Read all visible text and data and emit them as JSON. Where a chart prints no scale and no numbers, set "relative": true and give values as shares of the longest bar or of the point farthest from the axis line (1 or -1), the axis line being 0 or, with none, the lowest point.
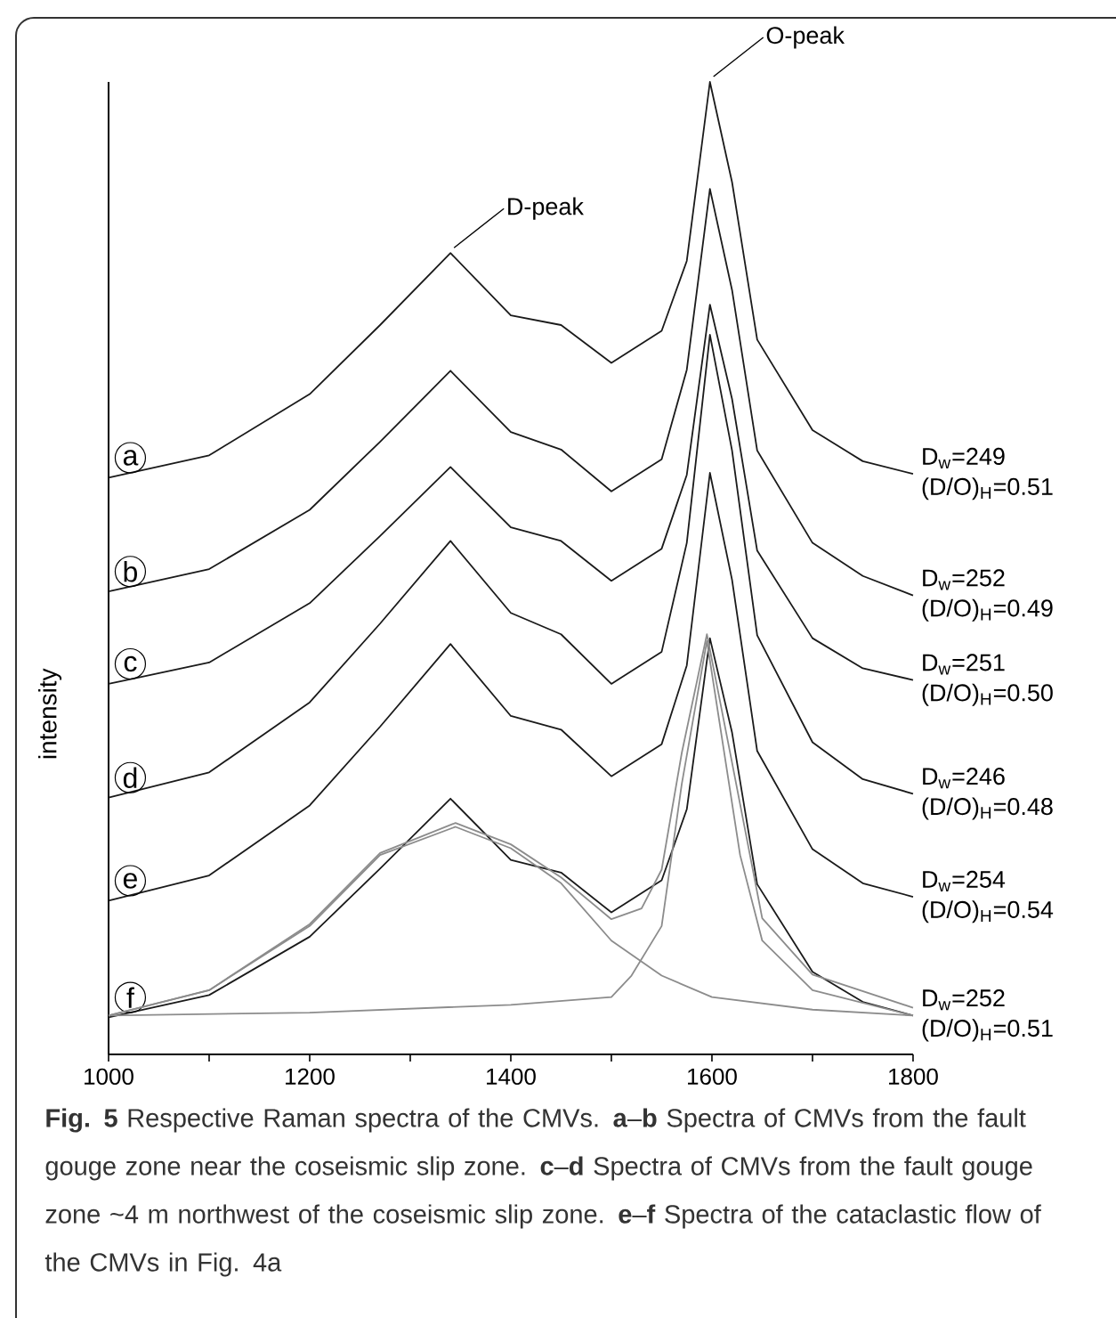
{
  "chart_data": {
    "type": "line",
    "relative": true,
    "ylabel": "intensity",
    "x": [
      1000,
      1100,
      1200,
      1270,
      1340,
      1400,
      1450,
      1500,
      1550,
      1575,
      1598,
      1620,
      1645,
      1700,
      1750,
      1800
    ],
    "xlim": [
      1000,
      1800
    ],
    "xticks": [
      1000,
      {
        "value": 1100,
        "label": null
      },
      1200,
      {
        "value": 1300,
        "label": null
      },
      1400,
      {
        "value": 1500,
        "label": null
      },
      1600,
      {
        "value": 1700,
        "label": null
      },
      1800
    ],
    "series": [
      {
        "name": "a",
        "color": "#1a1a1a",
        "values": [
          0.593,
          0.616,
          0.679,
          0.75,
          0.824,
          0.76,
          0.75,
          0.711,
          0.744,
          0.816,
          1.0,
          0.897,
          0.735,
          0.642,
          0.61,
          0.597
        ]
      },
      {
        "name": "b",
        "color": "#1a1a1a",
        "values": [
          0.476,
          0.499,
          0.56,
          0.63,
          0.703,
          0.64,
          0.622,
          0.579,
          0.612,
          0.704,
          0.89,
          0.786,
          0.621,
          0.526,
          0.492,
          0.472
        ]
      },
      {
        "name": "c",
        "color": "#1a1a1a",
        "values": [
          0.381,
          0.403,
          0.464,
          0.533,
          0.604,
          0.542,
          0.528,
          0.487,
          0.52,
          0.596,
          0.771,
          0.674,
          0.518,
          0.428,
          0.397,
          0.385
        ]
      },
      {
        "name": "d",
        "color": "#1a1a1a",
        "values": [
          0.264,
          0.29,
          0.362,
          0.443,
          0.528,
          0.454,
          0.432,
          0.381,
          0.414,
          0.526,
          0.74,
          0.621,
          0.431,
          0.321,
          0.283,
          0.268
        ]
      },
      {
        "name": "e",
        "color": "#1a1a1a",
        "values": [
          0.158,
          0.184,
          0.256,
          0.337,
          0.422,
          0.348,
          0.334,
          0.286,
          0.319,
          0.4,
          0.598,
          0.488,
          0.312,
          0.211,
          0.176,
          0.162
        ]
      },
      {
        "name": "f",
        "color": "#1a1a1a",
        "values": [
          0.038,
          0.061,
          0.121,
          0.191,
          0.263,
          0.2,
          0.187,
          0.146,
          0.179,
          0.252,
          0.428,
          0.331,
          0.175,
          0.085,
          0.054,
          0.04
        ]
      },
      {
        "color": "#8c8c8c",
        "x": [
          1000,
          1100,
          1200,
          1270,
          1345,
          1400,
          1450,
          1500,
          1550,
          1600,
          1700,
          1800
        ],
        "values": [
          0.04,
          0.066,
          0.132,
          0.205,
          0.234,
          0.212,
          0.176,
          0.117,
          0.081,
          0.059,
          0.046,
          0.04
        ]
      },
      {
        "color": "#8c8c8c",
        "x": [
          1000,
          1200,
          1400,
          1500,
          1520,
          1550,
          1570,
          1595,
          1628,
          1650,
          1700,
          1800
        ],
        "values": [
          0.04,
          0.043,
          0.051,
          0.059,
          0.081,
          0.132,
          0.278,
          0.425,
          0.205,
          0.117,
          0.066,
          0.04
        ]
      },
      {
        "color": "#8c8c8c",
        "x": [
          1000,
          1100,
          1200,
          1270,
          1345,
          1400,
          1450,
          1500,
          1530,
          1550,
          1570,
          1595,
          1620,
          1650,
          1700,
          1800
        ],
        "values": [
          0.04,
          0.066,
          0.134,
          0.207,
          0.238,
          0.216,
          0.182,
          0.139,
          0.15,
          0.19,
          0.31,
          0.432,
          0.3,
          0.14,
          0.082,
          0.048
        ]
      }
    ],
    "annotations": [
      {
        "text": "D-peak",
        "x": 1340,
        "y": 0.824
      },
      {
        "text": "O-peak",
        "x": 1598,
        "y": 1.0
      },
      {
        "text": "D$_{w}$=249 (D/O)$_{H}$=0.51",
        "x": 1800,
        "y": 0.597
      },
      {
        "text": "D$_{w}$=252 (D/O)$_{H}$=0.49",
        "x": 1800,
        "y": 0.472
      },
      {
        "text": "D$_{w}$=251 (D/O)$_{H}$=0.50",
        "x": 1800,
        "y": 0.385
      },
      {
        "text": "D$_{w}$=246 (D/O)$_{H}$=0.48",
        "x": 1800,
        "y": 0.268
      },
      {
        "text": "D$_{w}$=254 (D/O)$_{H}$=0.54",
        "x": 1800,
        "y": 0.162
      },
      {
        "text": "D$_{w}$=252 (D/O)$_{H}$=0.51",
        "x": 1800,
        "y": 0.04
      },
      "**Fig. 5** Respective Raman spectra of the CMVs. **a**–**b** Spectra of CMVs from the fault gouge zone near the coseismic slip zone. **c**–**d** Spectra of CMVs from the fault gouge zone ~4 m northwest of the coseismic slip zone. **e**–**f** Spectra of the cataclastic flow of the CMVs in Fig. 4a"
    ]
  }
}
